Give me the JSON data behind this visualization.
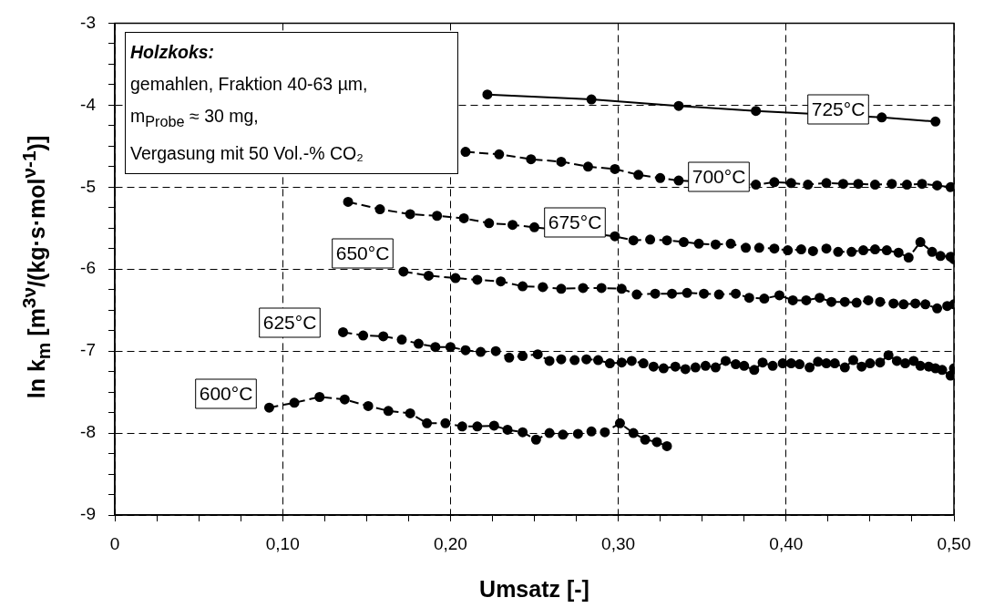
{
  "chart_data": {
    "type": "line",
    "xlabel": "Umsatz [-]",
    "ylabel": "ln k$_{m}$  [m$^{3ν}$/(kg·s·mol$^{ν-1}$)]",
    "annotations": [
      "Holzkoks:",
      "gemahlen, Fraktion 40-63 µm,",
      "m$_{Probe}$ ≈ 30 mg,",
      "Vergasung mit 50 Vol.-% CO₂"
    ],
    "xlim": [
      0,
      0.5
    ],
    "ylim": [
      -9,
      -3
    ],
    "xticks": [
      {
        "value": 0,
        "label": "0"
      },
      {
        "value": 0.025,
        "label": null
      },
      {
        "value": 0.05,
        "label": null
      },
      {
        "value": 0.075,
        "label": null
      },
      {
        "value": 0.1,
        "label": "0,10"
      },
      {
        "value": 0.125,
        "label": null
      },
      {
        "value": 0.15,
        "label": null
      },
      {
        "value": 0.175,
        "label": null
      },
      {
        "value": 0.2,
        "label": "0,20"
      },
      {
        "value": 0.225,
        "label": null
      },
      {
        "value": 0.25,
        "label": null
      },
      {
        "value": 0.275,
        "label": null
      },
      {
        "value": 0.3,
        "label": "0,30"
      },
      {
        "value": 0.325,
        "label": null
      },
      {
        "value": 0.35,
        "label": null
      },
      {
        "value": 0.375,
        "label": null
      },
      {
        "value": 0.4,
        "label": "0,40"
      },
      {
        "value": 0.425,
        "label": null
      },
      {
        "value": 0.45,
        "label": null
      },
      {
        "value": 0.475,
        "label": null
      },
      {
        "value": 0.5,
        "label": "0,50"
      }
    ],
    "yticks": [
      -9,
      {
        "value": -8.75,
        "label": null
      },
      {
        "value": -8.5,
        "label": null
      },
      {
        "value": -8.25,
        "label": null
      },
      -8,
      {
        "value": -7.75,
        "label": null
      },
      {
        "value": -7.5,
        "label": null
      },
      {
        "value": -7.25,
        "label": null
      },
      -7,
      {
        "value": -6.75,
        "label": null
      },
      {
        "value": -6.5,
        "label": null
      },
      {
        "value": -6.25,
        "label": null
      },
      -6,
      {
        "value": -5.75,
        "label": null
      },
      {
        "value": -5.5,
        "label": null
      },
      {
        "value": -5.25,
        "label": null
      },
      -5,
      {
        "value": -4.75,
        "label": null
      },
      {
        "value": -4.5,
        "label": null
      },
      {
        "value": -4.25,
        "label": null
      },
      -4,
      {
        "value": -3.75,
        "label": null
      },
      {
        "value": -3.5,
        "label": null
      },
      {
        "value": -3.25,
        "label": null
      },
      -3
    ],
    "grid": true,
    "marker": "circle",
    "series": [
      {
        "name": "725°C",
        "color": "#000000",
        "line_style": "solid",
        "x": [
          0.222,
          0.284,
          0.336,
          0.382,
          0.457,
          0.489
        ],
        "values": [
          -3.87,
          -3.93,
          -4.01,
          -4.07,
          -4.15,
          -4.2
        ]
      },
      {
        "name": "700°C",
        "color": "#000000",
        "line_style": "dashed",
        "x": [
          0.209,
          0.229,
          0.248,
          0.266,
          0.282,
          0.298,
          0.312,
          0.325,
          0.336,
          0.382,
          0.393,
          0.403,
          0.413,
          0.424,
          0.434,
          0.443,
          0.453,
          0.463,
          0.472,
          0.481,
          0.49,
          0.498
        ],
        "values": [
          -4.57,
          -4.6,
          -4.66,
          -4.69,
          -4.75,
          -4.78,
          -4.85,
          -4.89,
          -4.92,
          -4.97,
          -4.94,
          -4.95,
          -4.97,
          -4.95,
          -4.96,
          -4.96,
          -4.97,
          -4.96,
          -4.97,
          -4.96,
          -4.98,
          -5.0
        ]
      },
      {
        "name": "675°C",
        "color": "#000000",
        "line_style": "dashed",
        "x": [
          0.139,
          0.158,
          0.176,
          0.192,
          0.208,
          0.223,
          0.237,
          0.25,
          0.298,
          0.309,
          0.319,
          0.329,
          0.339,
          0.348,
          0.358,
          0.367,
          0.376,
          0.384,
          0.393,
          0.401,
          0.409,
          0.416,
          0.424,
          0.431,
          0.439,
          0.446,
          0.453,
          0.46,
          0.467,
          0.473,
          0.48,
          0.487,
          0.492,
          0.498,
          0.5
        ],
        "values": [
          -5.18,
          -5.27,
          -5.33,
          -5.35,
          -5.38,
          -5.44,
          -5.46,
          -5.49,
          -5.6,
          -5.65,
          -5.64,
          -5.65,
          -5.67,
          -5.69,
          -5.7,
          -5.69,
          -5.74,
          -5.74,
          -5.75,
          -5.77,
          -5.76,
          -5.78,
          -5.75,
          -5.79,
          -5.79,
          -5.77,
          -5.76,
          -5.77,
          -5.8,
          -5.86,
          -5.67,
          -5.79,
          -5.84,
          -5.85,
          -5.88
        ]
      },
      {
        "name": "650°C",
        "color": "#000000",
        "line_style": "dashed",
        "x": [
          0.172,
          0.187,
          0.203,
          0.216,
          0.23,
          0.243,
          0.255,
          0.266,
          0.279,
          0.29,
          0.302,
          0.311,
          0.322,
          0.332,
          0.341,
          0.351,
          0.36,
          0.37,
          0.378,
          0.387,
          0.396,
          0.404,
          0.412,
          0.42,
          0.427,
          0.435,
          0.442,
          0.449,
          0.456,
          0.464,
          0.47,
          0.477,
          0.483,
          0.49,
          0.496,
          0.5
        ],
        "values": [
          -6.03,
          -6.08,
          -6.11,
          -6.13,
          -6.15,
          -6.21,
          -6.22,
          -6.24,
          -6.23,
          -6.23,
          -6.24,
          -6.31,
          -6.3,
          -6.3,
          -6.29,
          -6.3,
          -6.31,
          -6.3,
          -6.35,
          -6.36,
          -6.32,
          -6.38,
          -6.38,
          -6.35,
          -6.4,
          -6.4,
          -6.41,
          -6.38,
          -6.4,
          -6.42,
          -6.43,
          -6.42,
          -6.43,
          -6.48,
          -6.45,
          -6.43
        ]
      },
      {
        "name": "625°C",
        "color": "#000000",
        "line_style": "dashed",
        "x": [
          0.136,
          0.148,
          0.16,
          0.171,
          0.181,
          0.191,
          0.2,
          0.209,
          0.218,
          0.227,
          0.235,
          0.243,
          0.252,
          0.259,
          0.266,
          0.274,
          0.281,
          0.288,
          0.295,
          0.302,
          0.308,
          0.315,
          0.321,
          0.327,
          0.334,
          0.34,
          0.346,
          0.352,
          0.358,
          0.364,
          0.37,
          0.375,
          0.381,
          0.386,
          0.392,
          0.398,
          0.403,
          0.408,
          0.414,
          0.419,
          0.424,
          0.429,
          0.435,
          0.44,
          0.445,
          0.45,
          0.456,
          0.461,
          0.466,
          0.471,
          0.476,
          0.48,
          0.485,
          0.489,
          0.493,
          0.498,
          0.5
        ],
        "values": [
          -6.77,
          -6.81,
          -6.82,
          -6.86,
          -6.91,
          -6.95,
          -6.95,
          -6.99,
          -7.01,
          -7.0,
          -7.08,
          -7.06,
          -7.04,
          -7.12,
          -7.1,
          -7.11,
          -7.1,
          -7.11,
          -7.15,
          -7.14,
          -7.12,
          -7.15,
          -7.19,
          -7.21,
          -7.19,
          -7.22,
          -7.2,
          -7.18,
          -7.2,
          -7.12,
          -7.16,
          -7.18,
          -7.23,
          -7.14,
          -7.18,
          -7.15,
          -7.15,
          -7.16,
          -7.2,
          -7.13,
          -7.15,
          -7.15,
          -7.2,
          -7.11,
          -7.19,
          -7.15,
          -7.14,
          -7.05,
          -7.12,
          -7.15,
          -7.12,
          -7.18,
          -7.19,
          -7.21,
          -7.23,
          -7.3,
          -7.21
        ]
      },
      {
        "name": "600°C",
        "color": "#000000",
        "line_style": "dashed",
        "x": [
          0.092,
          0.107,
          0.122,
          0.137,
          0.151,
          0.163,
          0.176,
          0.186,
          0.197,
          0.207,
          0.216,
          0.226,
          0.234,
          0.243,
          0.251,
          0.259,
          0.267,
          0.276,
          0.284,
          0.292,
          0.301,
          0.309,
          0.316,
          0.323,
          0.329
        ],
        "values": [
          -7.69,
          -7.63,
          -7.56,
          -7.59,
          -7.67,
          -7.73,
          -7.76,
          -7.88,
          -7.88,
          -7.92,
          -7.92,
          -7.91,
          -7.96,
          -7.99,
          -8.08,
          -8.0,
          -8.02,
          -8.01,
          -7.98,
          -7.99,
          -7.88,
          -8.0,
          -8.08,
          -8.11,
          -8.16
        ]
      }
    ]
  }
}
